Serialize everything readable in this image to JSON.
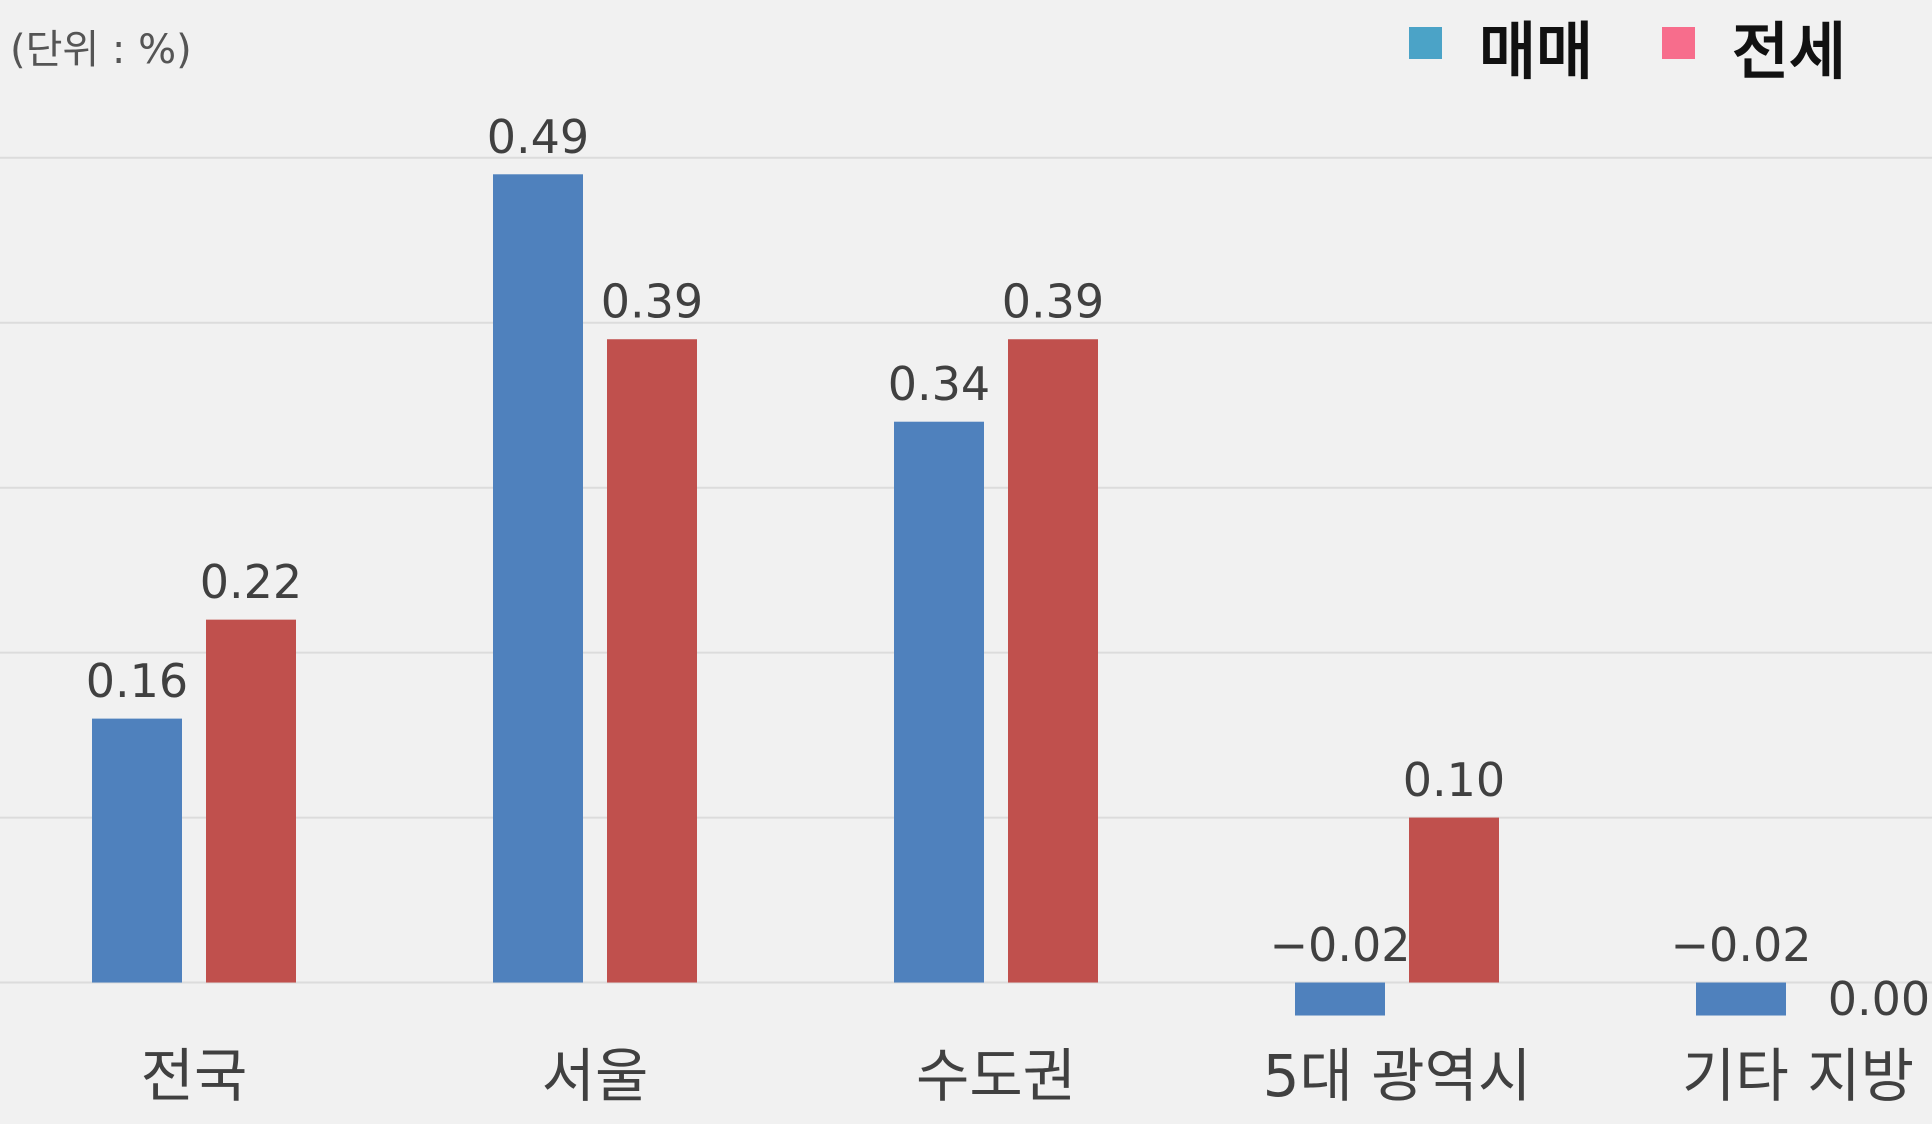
{
  "chart_data": {
    "type": "bar",
    "unit": "(단위 : %)",
    "categories": [
      "전국",
      "서울",
      "수도권",
      "5대 광역시",
      "기타 지방"
    ],
    "series": [
      {
        "name": "매매",
        "color": "#4f81bd",
        "legend_color": "#4ba3c7",
        "values": [
          0.16,
          0.49,
          0.34,
          -0.02,
          -0.02
        ],
        "value_labels": [
          "0.16",
          "0.49",
          "0.34",
          "−0.02",
          "−0.02"
        ]
      },
      {
        "name": "전세",
        "color": "#c0504d",
        "legend_color": "#f76d8c",
        "values": [
          0.22,
          0.39,
          0.39,
          0.1,
          0
        ],
        "value_labels": [
          "0.22",
          "0.39",
          "0.39",
          "0.10",
          "0.00"
        ]
      }
    ],
    "ylim": [
      -0.05,
      0.5
    ],
    "yticks": [
      0,
      0.1,
      0.2,
      0.3,
      0.4,
      0.5
    ],
    "grid": true,
    "legend": "top-right"
  }
}
